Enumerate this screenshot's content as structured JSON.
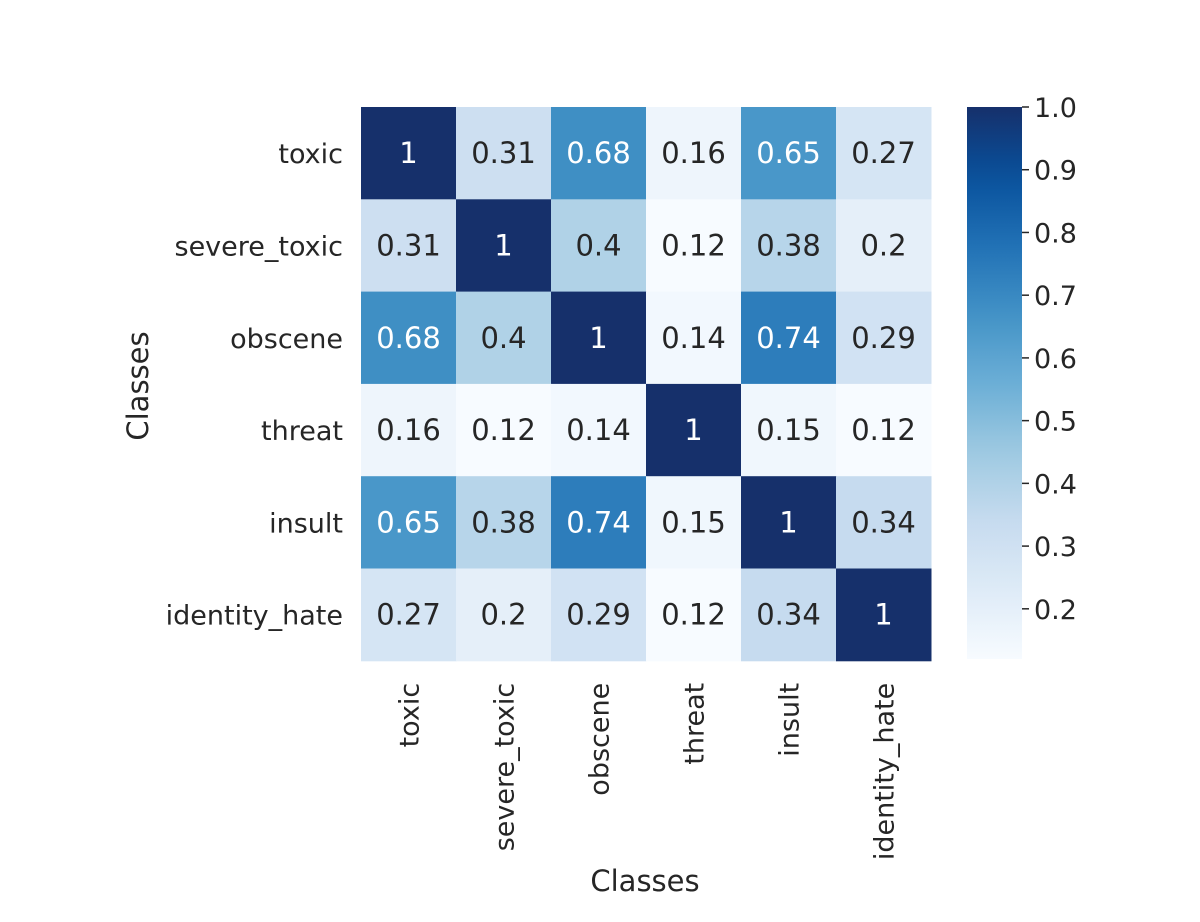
{
  "chart_data": {
    "type": "heatmap",
    "xlabel": "Classes",
    "ylabel": "Classes",
    "x_categories": [
      "toxic",
      "severe_toxic",
      "obscene",
      "threat",
      "insult",
      "identity_hate"
    ],
    "y_categories": [
      "toxic",
      "severe_toxic",
      "obscene",
      "threat",
      "insult",
      "identity_hate"
    ],
    "values": [
      [
        1,
        0.31,
        0.68,
        0.16,
        0.65,
        0.27
      ],
      [
        0.31,
        1,
        0.4,
        0.12,
        0.38,
        0.2
      ],
      [
        0.68,
        0.4,
        1,
        0.14,
        0.74,
        0.29
      ],
      [
        0.16,
        0.12,
        0.14,
        1,
        0.15,
        0.12
      ],
      [
        0.65,
        0.38,
        0.74,
        0.15,
        1,
        0.34
      ],
      [
        0.27,
        0.2,
        0.29,
        0.12,
        0.34,
        1
      ]
    ],
    "value_labels": [
      [
        "1",
        "0.31",
        "0.68",
        "0.16",
        "0.65",
        "0.27"
      ],
      [
        "0.31",
        "1",
        "0.4",
        "0.12",
        "0.38",
        "0.2"
      ],
      [
        "0.68",
        "0.4",
        "1",
        "0.14",
        "0.74",
        "0.29"
      ],
      [
        "0.16",
        "0.12",
        "0.14",
        "1",
        "0.15",
        "0.12"
      ],
      [
        "0.65",
        "0.38",
        "0.74",
        "0.15",
        "1",
        "0.34"
      ],
      [
        "0.27",
        "0.2",
        "0.29",
        "0.12",
        "0.34",
        "1"
      ]
    ],
    "colormap": "Blues",
    "color_range": [
      0.12,
      1.0
    ],
    "colorbar_ticks": [
      0.2,
      0.3,
      0.4,
      0.5,
      0.6,
      0.7,
      0.8,
      0.9,
      1.0
    ],
    "colorbar_tick_labels": [
      "0.2",
      "0.3",
      "0.4",
      "0.5",
      "0.6",
      "0.7",
      "0.8",
      "0.9",
      "1.0"
    ],
    "colorbar": true,
    "grid": false
  }
}
